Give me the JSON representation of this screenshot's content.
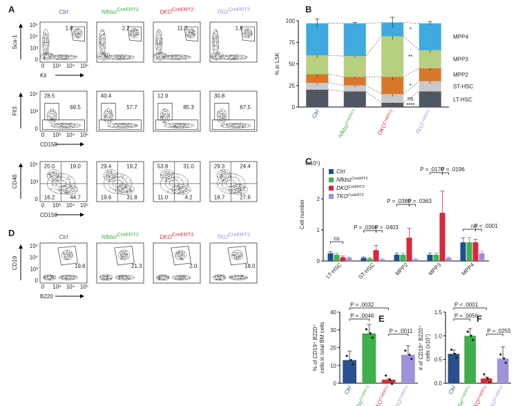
{
  "panel_labels": [
    "A",
    "B",
    "C",
    "D",
    "E",
    "F"
  ],
  "flow_A": {
    "genotypes": [
      "Ctrl",
      "Nfkbiz",
      "DKO",
      "TKO"
    ],
    "genotype_sups": [
      null,
      "CreERT2",
      "CreERT2",
      "CreERT2"
    ],
    "genotype_colors": [
      "#2b4f8e",
      "#3dae49",
      "#d62a3a",
      "#9d93d8"
    ],
    "rows": [
      {
        "y_label": "Sca-1",
        "x_label": "Kit",
        "yticks": [
          "10⁵",
          "10⁴",
          "10³",
          "0"
        ],
        "xticks": [
          "0",
          "10³",
          "10⁴",
          "10⁵"
        ],
        "gates": [
          [
            "1.8"
          ],
          [
            "2.2"
          ],
          [
            "11.3"
          ],
          [
            "1.6"
          ]
        ]
      },
      {
        "y_label": "Flt3",
        "x_label": "CD150",
        "yticks": [
          "10⁵",
          "10³",
          "0"
        ],
        "xticks": [
          "0",
          "10³",
          "10⁴",
          "10⁵"
        ],
        "gates": [
          [
            "28.5",
            "69.5"
          ],
          [
            "40.4",
            "57.7"
          ],
          [
            "12.9",
            "85.3"
          ],
          [
            "30.8",
            "67.5"
          ]
        ]
      },
      {
        "y_label": "CD48",
        "x_label": "CD150",
        "yticks": [
          "10⁵",
          "10³",
          "0"
        ],
        "xticks": [
          "0",
          "10³",
          "10⁴",
          "10⁵"
        ],
        "gates": [
          [
            "20.0",
            "19.0",
            "16.2",
            "44.7"
          ],
          [
            "29.4",
            "19.2",
            "19.6",
            "31.8"
          ],
          [
            "53.8",
            "31.0",
            "11.0",
            "4.2"
          ],
          [
            "29.3",
            "24.4",
            "18.7",
            "27.6"
          ]
        ]
      }
    ]
  },
  "flow_D": {
    "genotypes": [
      "Ctrl",
      "Nfkbiz",
      "DKO",
      "TKO"
    ],
    "genotype_sups": [
      null,
      "CreERT2",
      "CreERT2",
      "CreERT2"
    ],
    "genotype_colors": [
      "#2b4f8e",
      "#3dae49",
      "#d62a3a",
      "#9d93d8"
    ],
    "rows": [
      {
        "y_label": "CD19",
        "x_label": "B220",
        "yticks": [
          "10⁵",
          "10⁴",
          "10³",
          "0"
        ],
        "xticks": [
          "0",
          "10³",
          "10⁴",
          "10⁵"
        ],
        "gates": [
          [
            "19.6"
          ],
          [
            "21.3"
          ],
          [
            "2.0"
          ],
          [
            "18.0"
          ]
        ]
      }
    ]
  },
  "chart_data": [
    {
      "type": "stacked_bar",
      "y_label": "% in LSK",
      "categories": [
        "Ctrl",
        "Nfkbiz",
        "DKO",
        "TKO"
      ],
      "category_sups": [
        null,
        "CreERT2",
        "CreERT2",
        "CreERT2"
      ],
      "category_colors": [
        "#2b4f8e",
        "#3dae49",
        "#d62a3a",
        "#9d93d8"
      ],
      "ylim": [
        0,
        100
      ],
      "yticks": [
        0,
        25,
        50,
        75,
        100
      ],
      "series": [
        {
          "name": "LT-HSC",
          "color": "#4f5763",
          "values": [
            20,
            18,
            5,
            18
          ],
          "errors": [
            4,
            3,
            2,
            3
          ],
          "sig": "****"
        },
        {
          "name": "ST-HSC",
          "color": "#c9c9cb",
          "values": [
            8,
            7,
            10,
            12
          ],
          "errors": [
            2,
            2,
            3,
            3
          ],
          "sig": "ns"
        },
        {
          "name": "MPP2",
          "color": "#d8772a",
          "values": [
            10,
            10,
            20,
            15
          ],
          "errors": [
            3,
            2,
            4,
            3
          ],
          "sig": "*"
        },
        {
          "name": "MPP3",
          "color": "#b7cf80",
          "values": [
            22,
            24,
            47,
            21
          ],
          "errors": [
            3,
            2,
            4,
            3
          ],
          "sig": "**"
        },
        {
          "name": "MPP4",
          "color": "#3fa9e0",
          "values": [
            37,
            38,
            16,
            31
          ],
          "errors": [
            5,
            1,
            6,
            2
          ],
          "sig": "*"
        }
      ]
    },
    {
      "type": "grouped_bar",
      "y_label": "Cell number",
      "y_unit": "(x10⁵)",
      "categories": [
        "LT-HSC",
        "ST-HSC",
        "MPP2",
        "MPP3",
        "MPP4"
      ],
      "ylim": [
        0,
        3
      ],
      "yticks": [
        0,
        1,
        2
      ],
      "series": [
        {
          "name": "Ctrl",
          "sup": null,
          "color": "#1f4e8c",
          "values": [
            0.25,
            0.1,
            0.2,
            0.2,
            0.6
          ],
          "errors": [
            0.05,
            0.03,
            0.05,
            0.05,
            0.15
          ]
        },
        {
          "name": "Nfkbiz",
          "sup": "CreERT2",
          "color": "#3cb44b",
          "values": [
            0.2,
            0.08,
            0.2,
            0.2,
            0.6
          ],
          "errors": [
            0.05,
            0.03,
            0.05,
            0.05,
            0.15
          ]
        },
        {
          "name": "DKO",
          "sup": "CreERT2",
          "color": "#d7263d",
          "values": [
            0.12,
            0.35,
            0.75,
            1.55,
            0.6
          ],
          "errors": [
            0.04,
            0.15,
            0.3,
            0.7,
            0.1
          ]
        },
        {
          "name": "TKO",
          "sup": "CreERT2",
          "color": "#9c8fd6",
          "values": [
            0.1,
            0.05,
            0.05,
            0.1,
            0.25
          ],
          "errors": [
            0.03,
            0.02,
            0.02,
            0.03,
            0.06
          ]
        }
      ],
      "annotations": [
        "ns",
        "P = .0366",
        "P = .0403",
        "P = .0389",
        "P = .0363",
        "P = .0170",
        "P = .0196",
        "ns",
        "P < .0001"
      ]
    },
    {
      "type": "bar",
      "y_label": [
        "% of CD19⁺ B220⁺",
        "cells in total BM cells"
      ],
      "categories": [
        "Ctrl",
        "Nfkbiz",
        "DKO",
        "TKO"
      ],
      "category_sups": [
        null,
        "CreERT2",
        "CreERT2",
        "CreERT2"
      ],
      "category_colors": [
        "#2b4f8e",
        "#3dae49",
        "#d62a3a",
        "#9d93d8"
      ],
      "ylim": [
        0,
        40
      ],
      "yticks": [
        0,
        10,
        20,
        30,
        40
      ],
      "values": [
        13,
        28,
        2,
        16
      ],
      "errors": [
        5,
        5,
        0.5,
        5
      ],
      "annotations": [
        "P = .0032",
        "P = .0046",
        "P = .0011"
      ]
    },
    {
      "type": "bar",
      "y_label": [
        "# of CD19⁺ B220⁺",
        "cells (x10⁷)"
      ],
      "categories": [
        "Ctrl",
        "Nfkbiz",
        "DKO",
        "TKO"
      ],
      "category_sups": [
        null,
        "CreERT2",
        "CreERT2",
        "CreERT2"
      ],
      "category_colors": [
        "#2b4f8e",
        "#3dae49",
        "#d62a3a",
        "#9d93d8"
      ],
      "ylim": [
        0,
        1.5
      ],
      "yticks": [
        {
          "value": 0,
          "label": "0.0"
        },
        0.5,
        {
          "value": 1,
          "label": "1.0"
        },
        1.5
      ],
      "values": [
        0.62,
        1.0,
        0.1,
        0.52
      ],
      "errors": [
        0.08,
        0.15,
        0.03,
        0.25
      ],
      "annotations": [
        "P < .0001",
        "P = .0056",
        "P = .0255"
      ]
    }
  ]
}
